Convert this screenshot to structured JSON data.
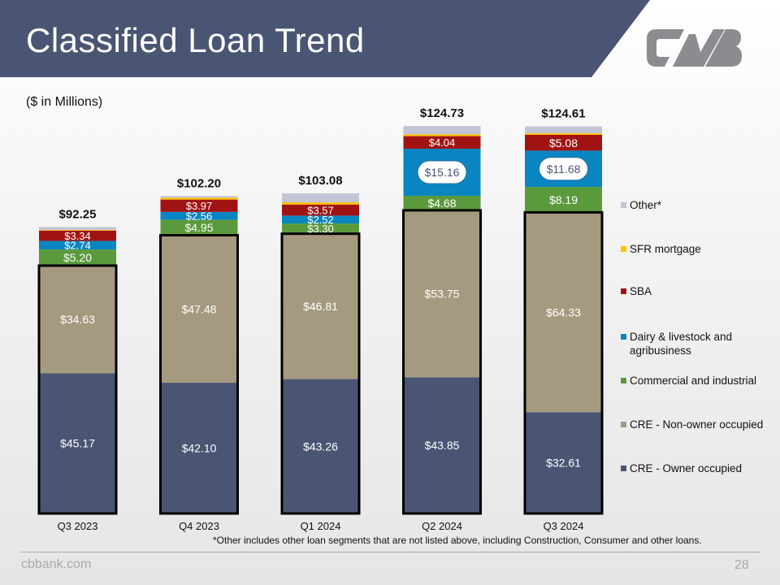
{
  "slide": {
    "title": "Classified Loan Trend",
    "subtitle": "($ in Millions)",
    "footnote": "*Other includes other loan segments that are not listed above, including Construction, Consumer and other loans.",
    "footer_url": "cbbank.com",
    "page_number": "28",
    "colors": {
      "banner": "#4a5574",
      "logo": "#8a8c8f",
      "footer": "#a7a9ac"
    }
  },
  "chart_data": {
    "type": "bar",
    "stacked": true,
    "categories": [
      "Q3 2023",
      "Q4 2023",
      "Q1 2024",
      "Q2 2024",
      "Q3 2024"
    ],
    "totals_labels": [
      "$92.25",
      "$102.20",
      "$103.08",
      "$124.73",
      "$124.61"
    ],
    "totals": [
      92.25,
      102.2,
      103.08,
      124.73,
      124.61
    ],
    "ylim": [
      0,
      130
    ],
    "grid": false,
    "legend_position": "right",
    "series": [
      {
        "name": "CRE - Owner occupied",
        "color": "#4a5574",
        "values": [
          45.17,
          42.1,
          43.26,
          43.85,
          32.61
        ],
        "labels": [
          "$45.17",
          "$42.10",
          "$43.26",
          "$43.85",
          "$32.61"
        ]
      },
      {
        "name": "CRE - Non-owner occupied",
        "color": "#a59a7f",
        "values": [
          34.63,
          47.48,
          46.81,
          53.75,
          64.33
        ],
        "labels": [
          "$34.63",
          "$47.48",
          "$46.81",
          "$53.75",
          "$64.33"
        ]
      },
      {
        "name": "Commercial and industrial",
        "color": "#5b9a3c",
        "values": [
          5.2,
          4.95,
          3.3,
          4.68,
          8.19
        ],
        "labels": [
          "$5.20",
          "$4.95",
          "$3.30",
          "$4.68",
          "$8.19"
        ]
      },
      {
        "name": "Dairy & livestock and agribusiness",
        "color": "#0a85c2",
        "values": [
          2.74,
          2.56,
          2.52,
          15.16,
          11.68
        ],
        "labels": [
          "$2.74",
          "$2.56",
          "$2.52",
          "$15.16",
          "$11.68"
        ]
      },
      {
        "name": "SBA",
        "color": "#a11313",
        "values": [
          3.34,
          3.97,
          3.57,
          4.04,
          5.08
        ],
        "labels": [
          "$3.34",
          "$3.97",
          "$3.57",
          "$4.04",
          "$5.08"
        ]
      },
      {
        "name": "SFR mortgage",
        "color": "#ffc000",
        "values": [
          0.2,
          0.6,
          0.7,
          0.6,
          0.5
        ],
        "labels": [
          "",
          "",
          "",
          "",
          ""
        ]
      },
      {
        "name": "Other*",
        "color": "#c2c5d6",
        "values": [
          0.97,
          0.54,
          2.92,
          2.65,
          2.22
        ],
        "labels": [
          "",
          "",
          "",
          "",
          ""
        ]
      }
    ],
    "legend_order": [
      "Other*",
      "SFR mortgage",
      "SBA",
      "Dairy & livestock and agribusiness",
      "Commercial and industrial",
      "CRE - Non-owner occupied",
      "CRE - Owner occupied"
    ],
    "highlighted_series": [
      "CRE - Owner occupied",
      "CRE - Non-owner occupied"
    ],
    "callout_series": "Dairy & livestock and agribusiness"
  }
}
